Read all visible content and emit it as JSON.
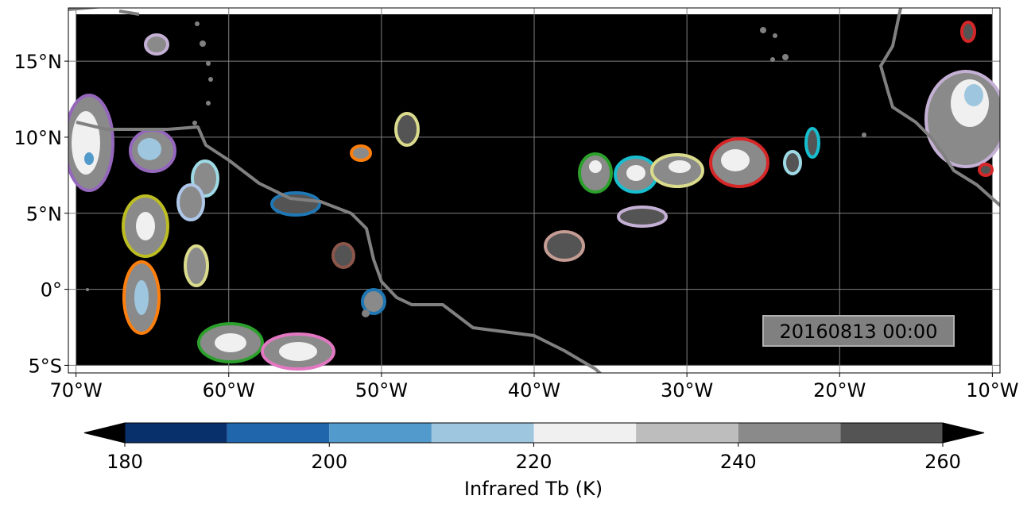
{
  "map": {
    "xlim": [
      -70.5,
      -9.5
    ],
    "ylim": [
      -5.5,
      18.5
    ],
    "xticks": [
      {
        "value": -70,
        "label": "70°W"
      },
      {
        "value": -60,
        "label": "60°W"
      },
      {
        "value": -50,
        "label": "50°W"
      },
      {
        "value": -40,
        "label": "40°W"
      },
      {
        "value": -30,
        "label": "30°W"
      },
      {
        "value": -20,
        "label": "20°W"
      },
      {
        "value": -10,
        "label": "10°W"
      }
    ],
    "yticks": [
      {
        "value": -5,
        "label": "5°S"
      },
      {
        "value": 0,
        "label": "0°"
      },
      {
        "value": 5,
        "label": "5°N"
      },
      {
        "value": 10,
        "label": "10°N"
      },
      {
        "value": 15,
        "label": "15°N"
      }
    ],
    "grid": true,
    "annotation": "20160813 00:00"
  },
  "colorbar": {
    "label": "Infrared Tb (K)",
    "bounds": [
      180,
      190,
      200,
      210,
      220,
      230,
      240,
      250,
      260
    ],
    "colors": [
      "#08306b",
      "#1f66ad",
      "#5299cc",
      "#9ec6de",
      "#f0f0f0",
      "#bdbdbd",
      "#8a8a8a",
      "#545454"
    ],
    "extend_color": "#000000",
    "ticks": [
      180,
      200,
      220,
      240,
      260
    ]
  }
}
